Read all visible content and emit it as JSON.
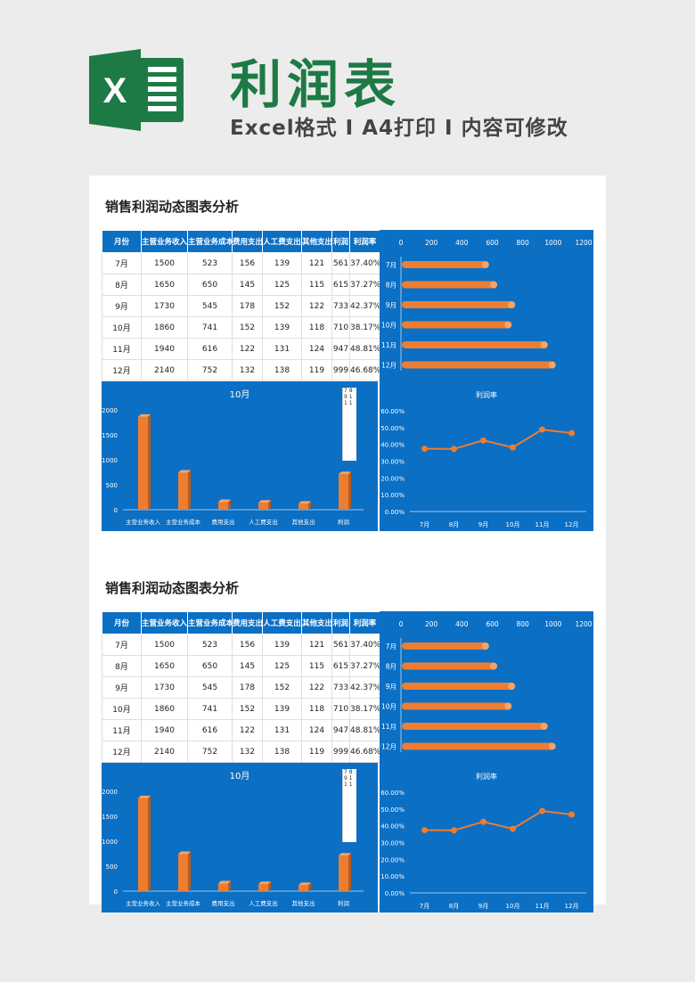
{
  "header": {
    "title": "利润表",
    "subtitle": "Excel格式 Ⅰ A4打印 Ⅰ 内容可修改",
    "logo_letter": "X",
    "brand_color": "#1e7a45"
  },
  "colors": {
    "panel_blue": "#0b6fc4",
    "bar_orange": "#ed7d31"
  },
  "sections": [
    {
      "title": "销售利润动态图表分析",
      "table": {
        "headers": [
          "月份",
          "主营业务收入",
          "主营业务成本",
          "费用支出",
          "人工费支出",
          "其他支出",
          "利润",
          "利润率"
        ],
        "rows": [
          [
            "7月",
            "1500",
            "523",
            "156",
            "139",
            "121",
            "561",
            "37.40%"
          ],
          [
            "8月",
            "1650",
            "650",
            "145",
            "125",
            "115",
            "615",
            "37.27%"
          ],
          [
            "9月",
            "1730",
            "545",
            "178",
            "152",
            "122",
            "733",
            "42.37%"
          ],
          [
            "10月",
            "1860",
            "741",
            "152",
            "139",
            "118",
            "710",
            "38.17%"
          ],
          [
            "11月",
            "1940",
            "616",
            "122",
            "131",
            "124",
            "947",
            "48.81%"
          ],
          [
            "12月",
            "2140",
            "752",
            "132",
            "138",
            "119",
            "999",
            "46.68%"
          ]
        ]
      },
      "legend_stub": "7 8 9 1 1 1"
    },
    {
      "title": "销售利润动态图表分析",
      "table": {
        "headers": [
          "月份",
          "主营业务收入",
          "主营业务成本",
          "费用支出",
          "人工费支出",
          "其他支出",
          "利润",
          "利润率"
        ],
        "rows": [
          [
            "7月",
            "1500",
            "523",
            "156",
            "139",
            "121",
            "561",
            "37.40%"
          ],
          [
            "8月",
            "1650",
            "650",
            "145",
            "125",
            "115",
            "615",
            "37.27%"
          ],
          [
            "9月",
            "1730",
            "545",
            "178",
            "152",
            "122",
            "733",
            "42.37%"
          ],
          [
            "10月",
            "1860",
            "741",
            "152",
            "139",
            "118",
            "710",
            "38.17%"
          ],
          [
            "11月",
            "1940",
            "616",
            "122",
            "131",
            "124",
            "947",
            "48.81%"
          ],
          [
            "12月",
            "2140",
            "752",
            "132",
            "138",
            "119",
            "999",
            "46.68%"
          ]
        ]
      },
      "legend_stub": "7 8 9 1 1 1"
    }
  ],
  "chart_data": [
    {
      "type": "bar",
      "orientation": "horizontal",
      "categories": [
        "7月",
        "8月",
        "9月",
        "10月",
        "11月",
        "12月"
      ],
      "values": [
        561,
        615,
        733,
        710,
        947,
        999
      ],
      "xlim": [
        0,
        1200
      ],
      "xticks": [
        "0",
        "200",
        "400",
        "600",
        "800",
        "1000",
        "1200"
      ],
      "grid": false
    },
    {
      "type": "bar",
      "title": "10月",
      "categories": [
        "主营业务收入",
        "主营业务成本",
        "费用支出",
        "人工费支出",
        "其他支出",
        "利润"
      ],
      "values": [
        1860,
        741,
        152,
        139,
        118,
        710
      ],
      "ylim": [
        0,
        2000
      ],
      "yticks": [
        "0",
        "500",
        "1000",
        "1500",
        "2000"
      ],
      "grid": false
    },
    {
      "type": "line",
      "title": "利润率",
      "categories": [
        "7月",
        "8月",
        "9月",
        "10月",
        "11月",
        "12月"
      ],
      "values": [
        37.4,
        37.27,
        42.37,
        38.17,
        48.81,
        46.68
      ],
      "ylim": [
        0,
        60
      ],
      "yticks": [
        "0.00%",
        "10.00%",
        "20.00%",
        "30.00%",
        "40.00%",
        "50.00%",
        "60.00%"
      ],
      "grid": false
    }
  ]
}
